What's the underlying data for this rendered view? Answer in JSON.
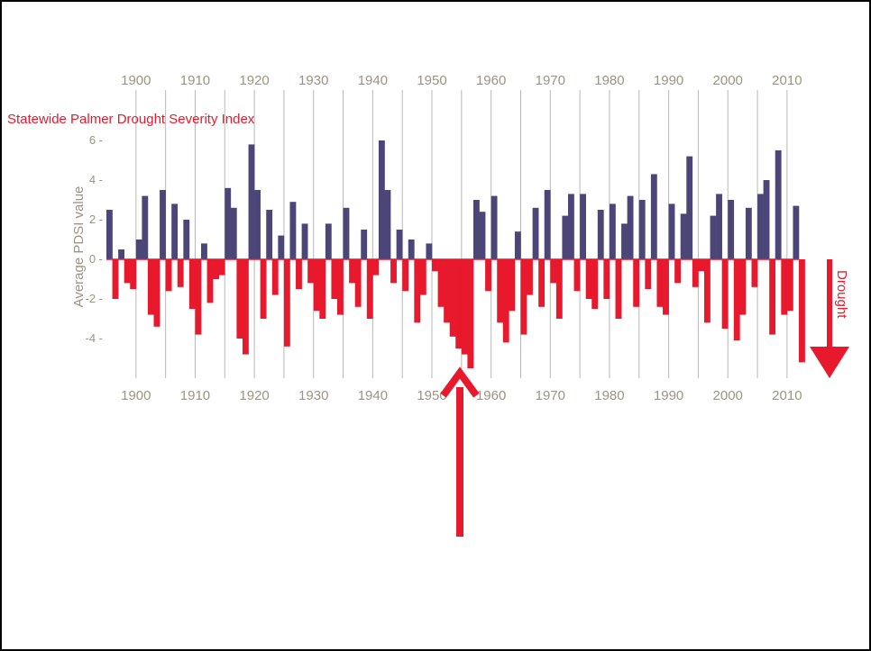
{
  "chart_data": {
    "type": "bar",
    "title": "Statewide Palmer Drought Severity Index",
    "ylabel": "Average PDSI value",
    "drought_label": "Drought",
    "xlim": [
      1895,
      2012
    ],
    "ylim": [
      -5.5,
      6.2
    ],
    "x_ticks": [
      "1900",
      "1910",
      "1920",
      "1930",
      "1940",
      "1950",
      "1960",
      "1970",
      "1980",
      "1990",
      "2000",
      "2010"
    ],
    "y_ticks": [
      {
        "value": 6,
        "label": "6 -"
      },
      {
        "value": 4,
        "label": "4 -"
      },
      {
        "value": 2,
        "label": "2 -"
      },
      {
        "value": 0,
        "label": "0 -"
      },
      {
        "value": -2,
        "label": "-2 -"
      },
      {
        "value": -4,
        "label": "-4 -"
      }
    ],
    "grid": "vertical every 5 years",
    "colors": {
      "positive": "#4b4677",
      "negative": "#e8192c",
      "grid": "#b8b8b8",
      "axis_text": "#9c9482",
      "accent": "#e8192c"
    },
    "annotation": "up-arrow-below-1950s-drought",
    "series": [
      {
        "x": [
          1895,
          1896,
          1897,
          1898,
          1899,
          1900,
          1901,
          1902,
          1903,
          1904,
          1905,
          1906,
          1907,
          1908,
          1909,
          1910,
          1911,
          1912,
          1913,
          1914,
          1915,
          1916,
          1917,
          1918,
          1919,
          1920,
          1921,
          1922,
          1923,
          1924,
          1925,
          1926,
          1927,
          1928,
          1929,
          1930,
          1931,
          1932,
          1933,
          1934,
          1935,
          1936,
          1937,
          1938,
          1939,
          1940,
          1941,
          1942,
          1943,
          1944,
          1945,
          1946,
          1947,
          1948,
          1949,
          1950,
          1951,
          1952,
          1953,
          1954,
          1955,
          1956,
          1957,
          1958,
          1959,
          1960,
          1961,
          1962,
          1963,
          1964,
          1965,
          1966,
          1967,
          1968,
          1969,
          1970,
          1971,
          1972,
          1973,
          1974,
          1975,
          1976,
          1977,
          1978,
          1979,
          1980,
          1981,
          1982,
          1983,
          1984,
          1985,
          1986,
          1987,
          1988,
          1989,
          1990,
          1991,
          1992,
          1993,
          1994,
          1995,
          1996,
          1997,
          1998,
          1999,
          2000,
          2001,
          2002,
          2003,
          2004,
          2005,
          2006,
          2007,
          2008,
          2009,
          2010,
          2011,
          2012
        ],
        "values": [
          2.5,
          -2.0,
          0.5,
          -1.2,
          -1.5,
          1.0,
          3.2,
          -2.8,
          -3.4,
          3.5,
          -1.6,
          2.8,
          -1.4,
          2.0,
          -2.5,
          -3.8,
          0.8,
          -2.2,
          -1.0,
          -0.8,
          3.6,
          2.6,
          -4.0,
          -4.8,
          5.8,
          3.5,
          -3.0,
          2.5,
          -1.8,
          1.2,
          -4.4,
          2.9,
          -1.5,
          1.8,
          -1.2,
          -2.6,
          -3.0,
          1.8,
          -2.0,
          -2.8,
          2.6,
          -1.2,
          -2.4,
          1.5,
          -3.0,
          -0.8,
          6.0,
          3.5,
          -1.2,
          1.5,
          -1.6,
          1.0,
          -3.2,
          -1.8,
          0.8,
          -0.6,
          -2.4,
          -3.2,
          -3.9,
          -4.5,
          -4.8,
          -5.5,
          3.0,
          2.4,
          -1.6,
          3.2,
          -3.2,
          -4.2,
          -2.6,
          1.4,
          -3.8,
          -1.8,
          2.6,
          -2.4,
          3.5,
          -1.2,
          -3.0,
          2.2,
          3.3,
          -1.6,
          3.3,
          -2.0,
          -2.5,
          2.5,
          -2.0,
          2.8,
          -3.0,
          1.8,
          3.2,
          -2.4,
          3.0,
          -1.5,
          4.3,
          -2.4,
          -2.8,
          2.8,
          -1.2,
          2.3,
          5.2,
          -1.4,
          -0.6,
          -3.2,
          2.2,
          3.3,
          -3.5,
          3.0,
          -4.1,
          -2.8,
          2.6,
          -1.4,
          3.3,
          4.0,
          -3.8,
          5.5,
          -2.8,
          -2.6,
          2.7,
          -5.2
        ]
      }
    ]
  }
}
